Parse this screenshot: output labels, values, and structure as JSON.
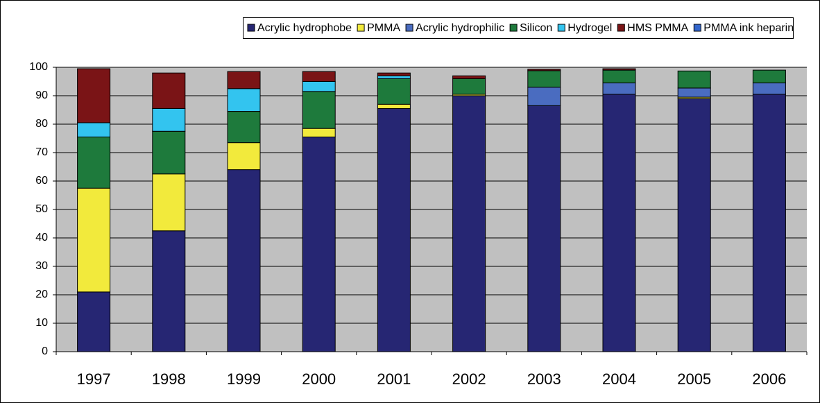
{
  "chart_data": {
    "type": "stacked_bar",
    "categories": [
      "1997",
      "1998",
      "1999",
      "2000",
      "2001",
      "2002",
      "2003",
      "2004",
      "2005",
      "2006"
    ],
    "series": [
      {
        "name": "Acrylic hydrophobe",
        "color": "#262673",
        "values": [
          21,
          42.5,
          64,
          75.5,
          85.5,
          90,
          86.5,
          90.5,
          89,
          90.5
        ]
      },
      {
        "name": "PMMA",
        "color": "#f2ea3c",
        "values": [
          36.5,
          20,
          9.5,
          3,
          1.5,
          0.5,
          0,
          0,
          0.5,
          0
        ]
      },
      {
        "name": "Acrylic hydrophilic",
        "color": "#4a6cc0",
        "values": [
          0,
          0,
          0,
          0,
          0,
          0,
          6.5,
          4,
          3.2,
          4
        ]
      },
      {
        "name": "Silicon",
        "color": "#1e7a3c",
        "values": [
          18,
          15,
          11,
          13,
          9,
          5.5,
          5.8,
          4.5,
          6,
          4.5
        ]
      },
      {
        "name": "Hydrogel",
        "color": "#33c4ef",
        "values": [
          5,
          8,
          8,
          3.5,
          1,
          0,
          0,
          0,
          0,
          0
        ]
      },
      {
        "name": "HMS PMMA",
        "color": "#7a1416",
        "values": [
          19,
          12.5,
          6,
          3.5,
          1,
          1,
          0.5,
          0.5,
          0,
          0
        ]
      },
      {
        "name": "PMMA ink heparin",
        "color": "#3366cc",
        "values": [
          0,
          0,
          0,
          0,
          0,
          0,
          0,
          0,
          0,
          0
        ]
      }
    ],
    "ylim": [
      0,
      100
    ],
    "yticks": [
      0,
      10,
      20,
      30,
      40,
      50,
      60,
      70,
      80,
      90,
      100
    ],
    "grid": true
  }
}
